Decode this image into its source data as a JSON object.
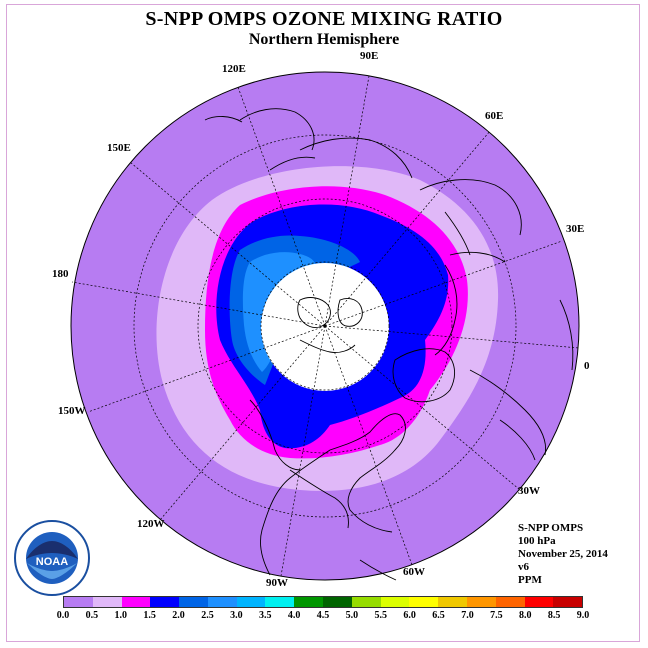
{
  "title": "S-NPP OMPS OZONE MIXING RATIO",
  "subtitle": "Northern Hemisphere",
  "longitude_labels": [
    "0",
    "30E",
    "60E",
    "90E",
    "120E",
    "150E",
    "180",
    "150W",
    "120W",
    "90W",
    "60W",
    "30W"
  ],
  "info": {
    "instrument": "S-NPP OMPS",
    "level": "100 hPa",
    "date": "November 25, 2014",
    "version": "v6",
    "units": "PPM"
  },
  "colorbar": {
    "labels": [
      "0.0",
      "0.5",
      "1.0",
      "1.5",
      "2.0",
      "2.5",
      "3.0",
      "3.5",
      "4.0",
      "4.5",
      "5.0",
      "5.5",
      "6.0",
      "6.5",
      "7.0",
      "7.5",
      "8.0",
      "8.5",
      "9.0"
    ],
    "colors": [
      "#b77cf2",
      "#e0b8f8",
      "#ff00ff",
      "#0000ff",
      "#0064e6",
      "#1e90ff",
      "#00b4ff",
      "#00f0f0",
      "#009600",
      "#006400",
      "#96dc00",
      "#dcff00",
      "#ffff00",
      "#f0c800",
      "#ff9600",
      "#ff6400",
      "#ff0000",
      "#c80000",
      "#8b5a3c"
    ]
  },
  "map_colors": {
    "band_0_0.5": "#b77cf2",
    "band_0.5_1.0": "#e0b8f8",
    "band_1.0_1.5": "#ff00ff",
    "band_1.5_2.0": "#0000ff",
    "band_2.0_2.5": "#0064e6",
    "band_2.5_3.0": "#1e90ff",
    "no_data": "#ffffff"
  },
  "logo_text": "NOAA"
}
